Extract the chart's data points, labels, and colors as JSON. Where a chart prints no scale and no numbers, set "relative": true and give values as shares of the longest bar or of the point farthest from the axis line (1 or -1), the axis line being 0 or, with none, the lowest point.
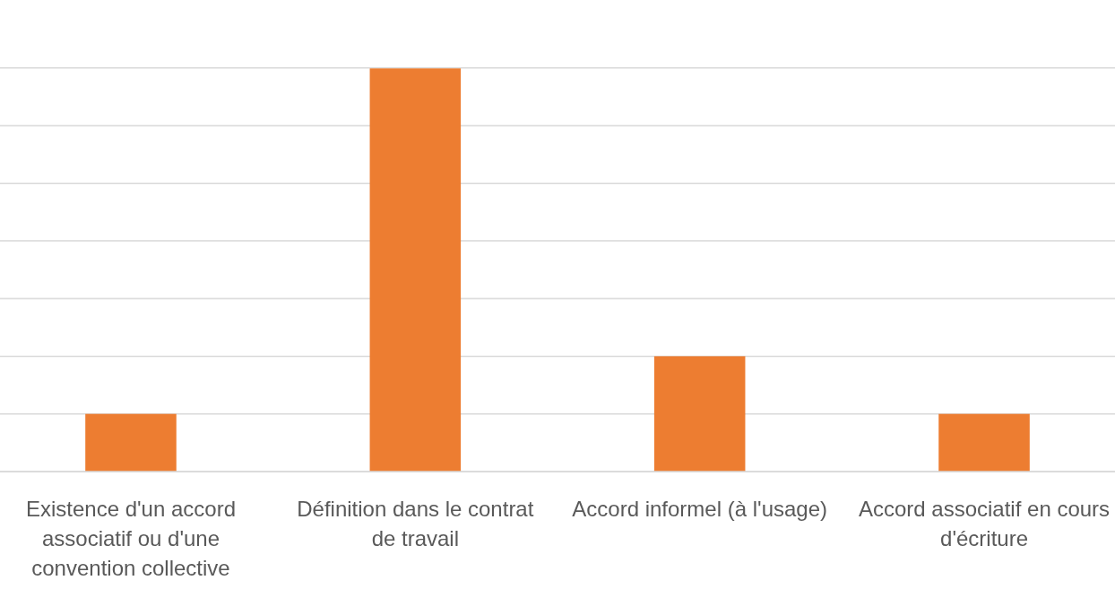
{
  "chart_data": {
    "type": "bar",
    "categories": [
      "Existence d'un accord associatif ou d'une convention collective",
      "Définition dans le contrat de travail",
      "Accord informel (à l'usage)",
      "Accord associatif en cours d'écriture"
    ],
    "values": [
      0.143,
      1,
      0.286,
      0.143
    ],
    "color": "#ed7d31",
    "relative": true,
    "grid": true
  }
}
